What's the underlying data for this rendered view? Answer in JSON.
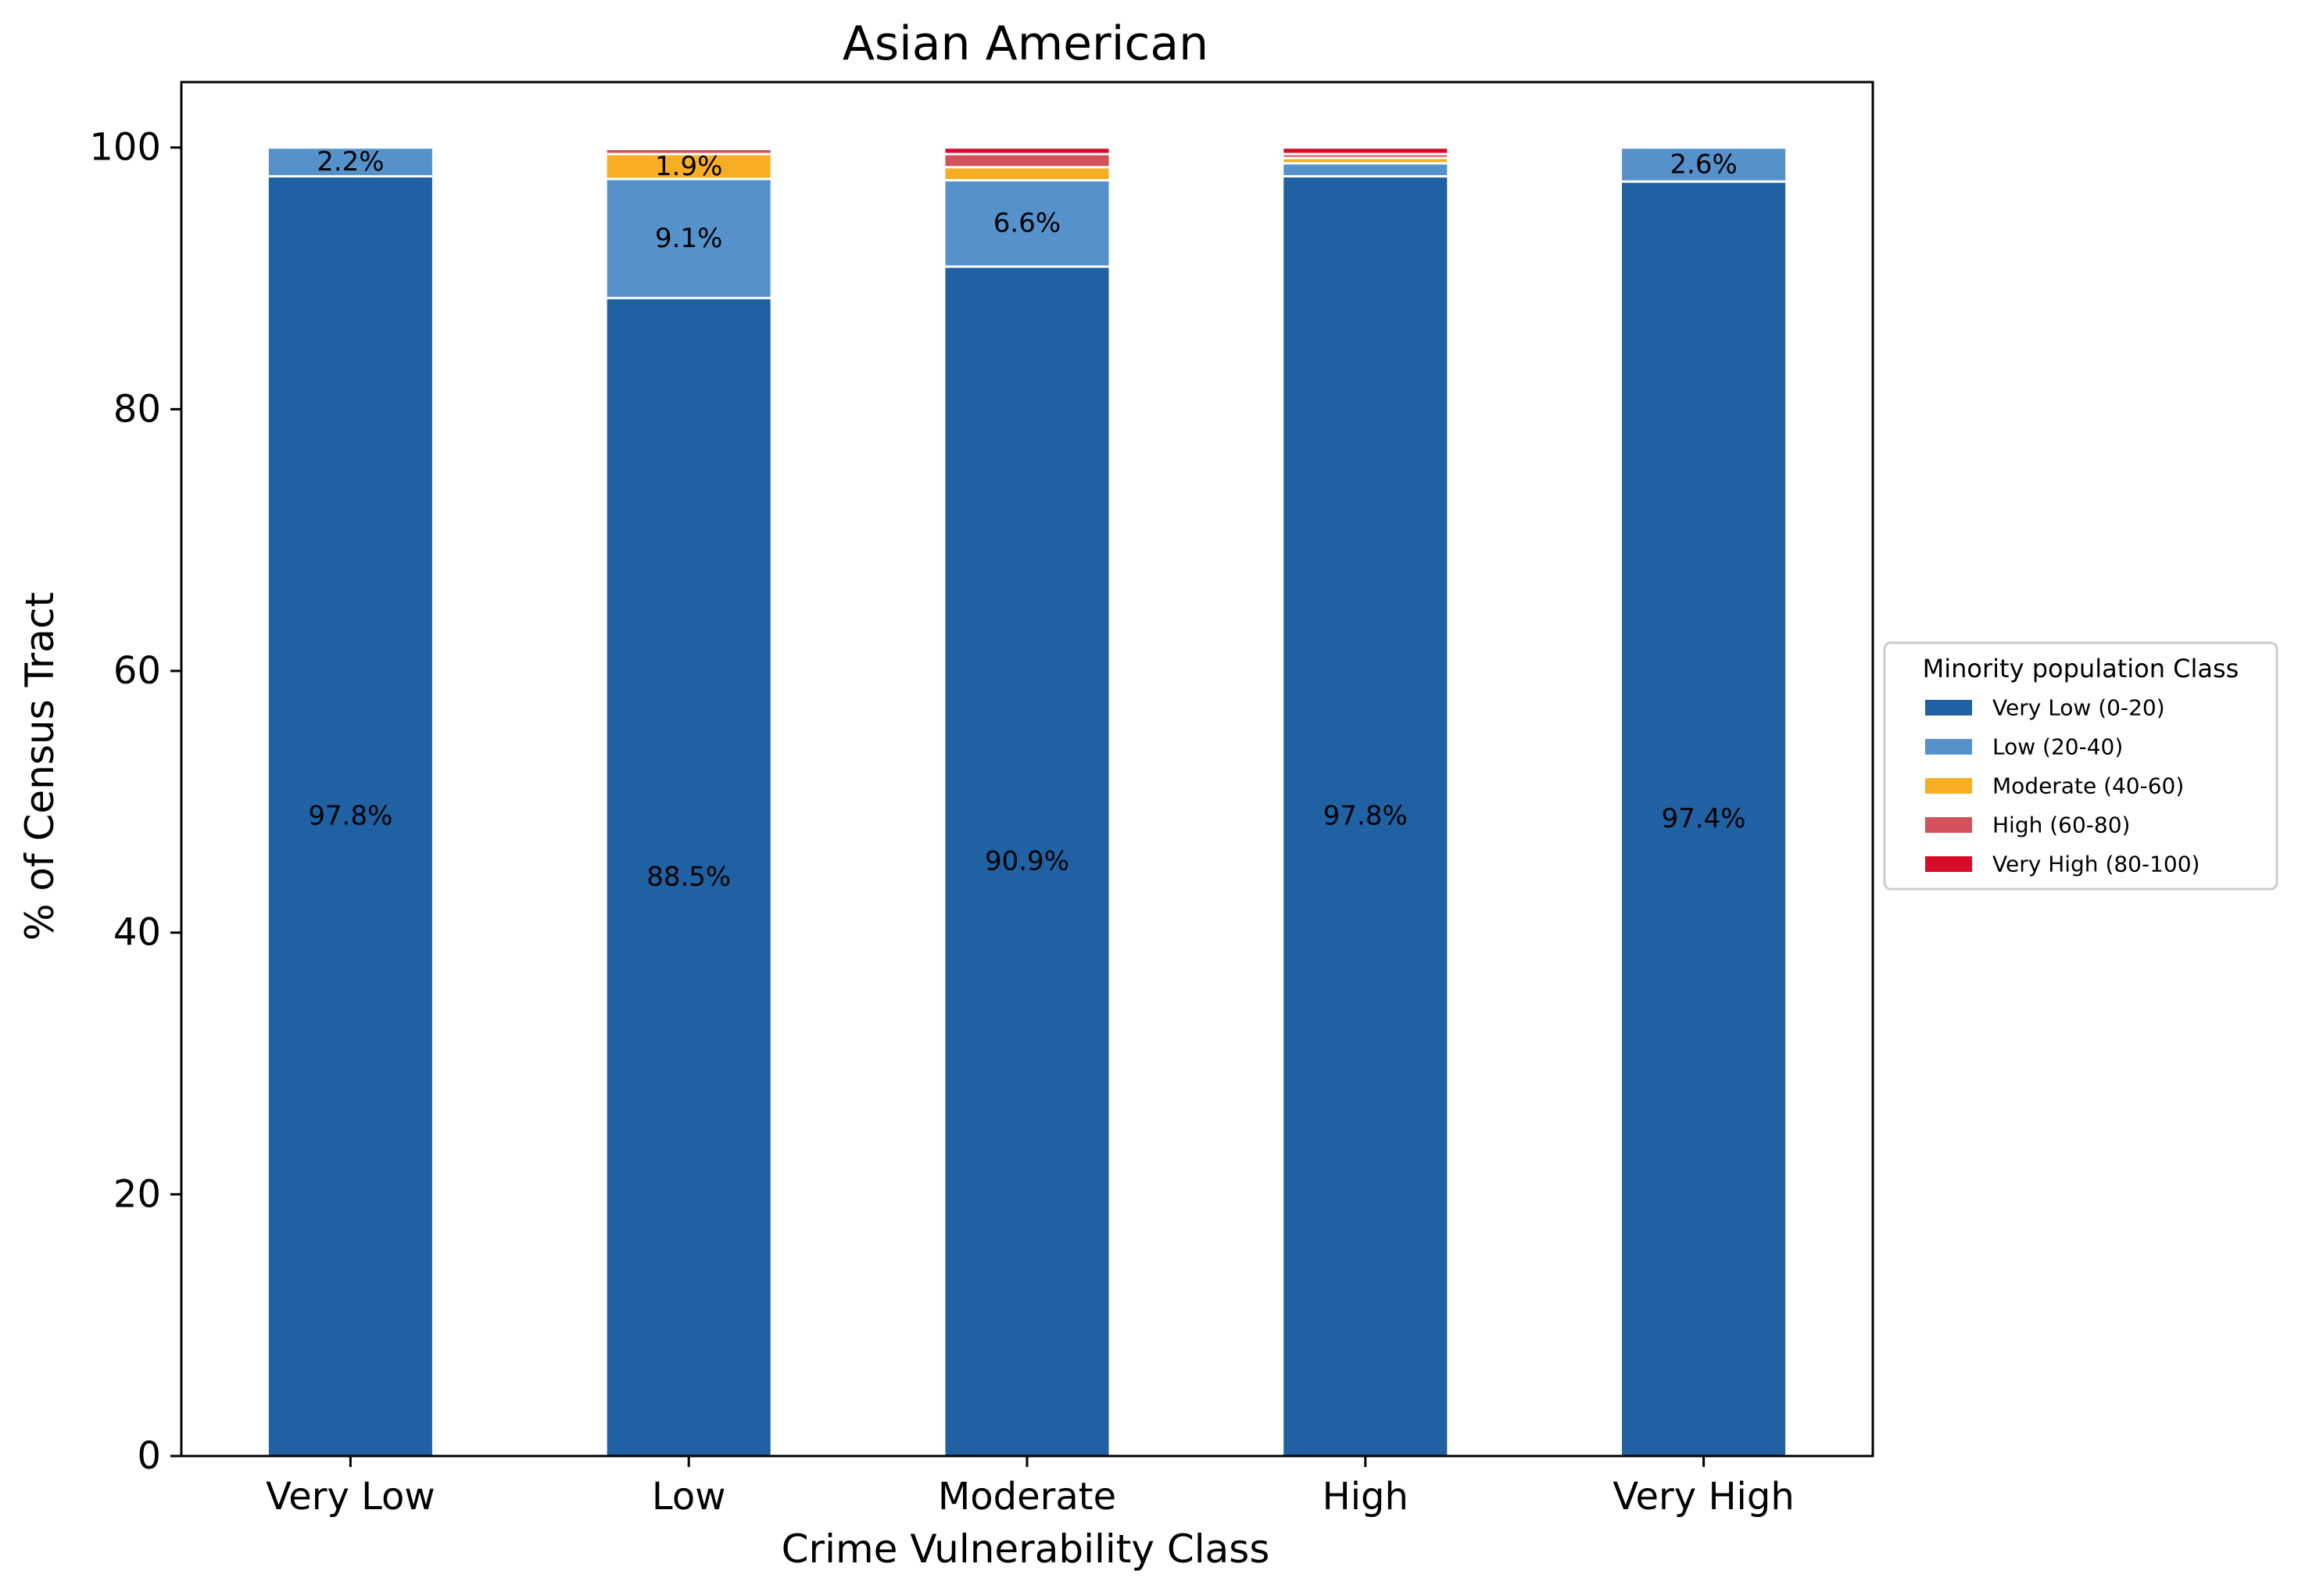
{
  "chart_data": {
    "type": "bar",
    "stacked": true,
    "title": "Asian American",
    "xlabel": "Crime Vulnerability Class",
    "ylabel": "% of Census Tract",
    "categories": [
      "Very Low",
      "Low",
      "Moderate",
      "High",
      "Very High"
    ],
    "ylim": [
      0,
      105
    ],
    "yticks": [
      0,
      20,
      40,
      60,
      80,
      100
    ],
    "grid": false,
    "legend": {
      "title": "Minority population Class",
      "placement": "right, outside plot"
    },
    "series": [
      {
        "name": "Very Low (0-20)",
        "color": "#1f61a3",
        "values": [
          97.8,
          88.5,
          90.9,
          97.8,
          97.4
        ]
      },
      {
        "name": "Low (20-40)",
        "color": "#5592cc",
        "values": [
          2.2,
          9.1,
          6.6,
          1.0,
          2.6
        ]
      },
      {
        "name": "Moderate (40-60)",
        "color": "#f7ae22",
        "values": [
          0.0,
          1.9,
          1.0,
          0.4,
          0.0
        ]
      },
      {
        "name": "High (60-80)",
        "color": "#d1525a",
        "values": [
          0.0,
          0.4,
          1.0,
          0.3,
          0.0
        ]
      },
      {
        "name": "Very High (80-100)",
        "color": "#d60c2a",
        "values": [
          0.0,
          0.1,
          0.5,
          0.5,
          0.0
        ]
      }
    ],
    "data_labels": [
      {
        "category": 0,
        "series": 0,
        "text": "97.8%"
      },
      {
        "category": 0,
        "series": 1,
        "text": "2.2%"
      },
      {
        "category": 1,
        "series": 0,
        "text": "88.5%"
      },
      {
        "category": 1,
        "series": 1,
        "text": "9.1%"
      },
      {
        "category": 1,
        "series": 2,
        "text": "1.9%"
      },
      {
        "category": 2,
        "series": 0,
        "text": "90.9%"
      },
      {
        "category": 2,
        "series": 1,
        "text": "6.6%"
      },
      {
        "category": 3,
        "series": 0,
        "text": "97.8%"
      },
      {
        "category": 4,
        "series": 0,
        "text": "97.4%"
      },
      {
        "category": 4,
        "series": 1,
        "text": "2.6%"
      }
    ]
  }
}
